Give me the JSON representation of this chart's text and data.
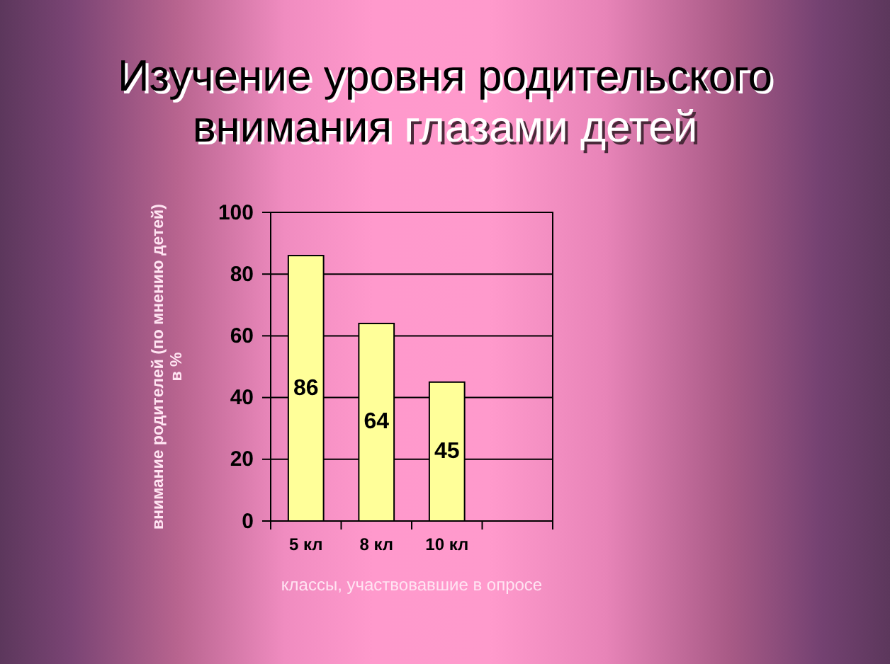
{
  "chart_data": {
    "type": "bar",
    "title": "Изучение уровня родительского внимания глазами детей",
    "xlabel": "классы, участвовавшие в опросе",
    "ylabel": "внимание родителей (по мнению детей)\nв %",
    "categories": [
      "5 кл",
      "8 кл",
      "10 кл",
      null
    ],
    "values": [
      86,
      64,
      45,
      null
    ],
    "color": "#ffff99",
    "ylim": [
      0,
      100
    ],
    "yticks": [
      0,
      20,
      40,
      60,
      80,
      100
    ],
    "grid": "y",
    "data_labels": true
  }
}
